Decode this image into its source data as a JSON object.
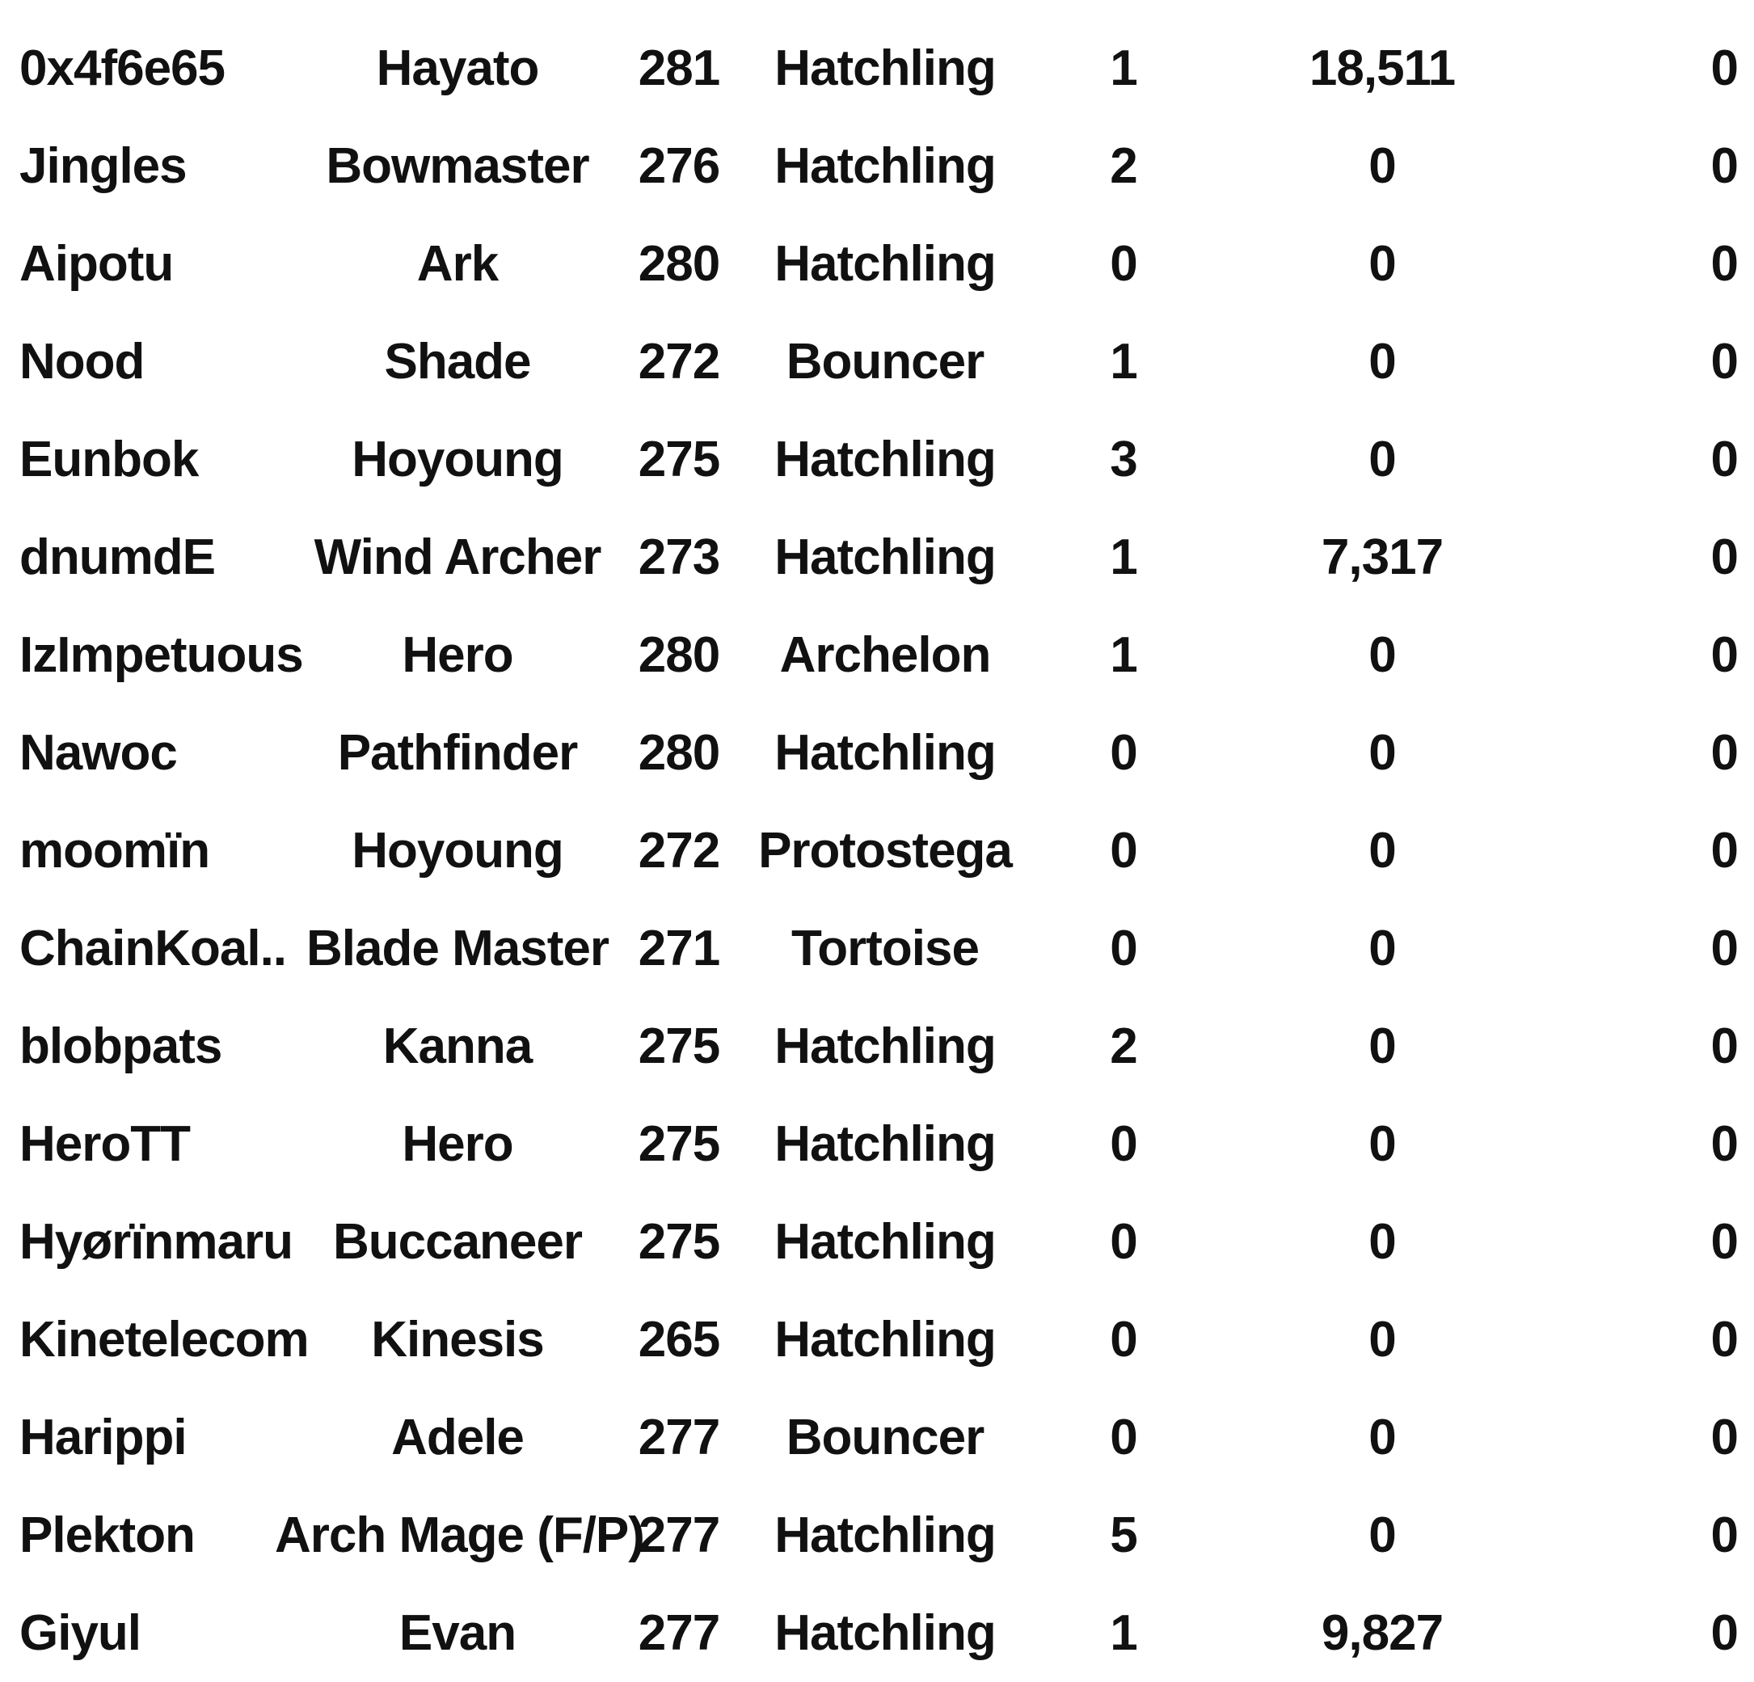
{
  "rows": [
    {
      "name": "0x4f6e65",
      "job": "Hayato",
      "level": "281",
      "legion": "Hatchling",
      "rank": "1",
      "points": "18,511",
      "extra": "0"
    },
    {
      "name": "Jingles",
      "job": "Bowmaster",
      "level": "276",
      "legion": "Hatchling",
      "rank": "2",
      "points": "0",
      "extra": "0"
    },
    {
      "name": "Aipotu",
      "job": "Ark",
      "level": "280",
      "legion": "Hatchling",
      "rank": "0",
      "points": "0",
      "extra": "0"
    },
    {
      "name": "Nood",
      "job": "Shade",
      "level": "272",
      "legion": "Bouncer",
      "rank": "1",
      "points": "0",
      "extra": "0"
    },
    {
      "name": "Eunbok",
      "job": "Hoyoung",
      "level": "275",
      "legion": "Hatchling",
      "rank": "3",
      "points": "0",
      "extra": "0"
    },
    {
      "name": "dnumdE",
      "job": "Wind Archer",
      "level": "273",
      "legion": "Hatchling",
      "rank": "1",
      "points": "7,317",
      "extra": "0"
    },
    {
      "name": "IzImpetuous",
      "job": "Hero",
      "level": "280",
      "legion": "Archelon",
      "rank": "1",
      "points": "0",
      "extra": "0"
    },
    {
      "name": "Nawoc",
      "job": "Pathfinder",
      "level": "280",
      "legion": "Hatchling",
      "rank": "0",
      "points": "0",
      "extra": "0"
    },
    {
      "name": "moomïn",
      "job": "Hoyoung",
      "level": "272",
      "legion": "Protostega",
      "rank": "0",
      "points": "0",
      "extra": "0"
    },
    {
      "name": "ChainKoal..",
      "job": "Blade Master",
      "level": "271",
      "legion": "Tortoise",
      "rank": "0",
      "points": "0",
      "extra": "0"
    },
    {
      "name": "blobpats",
      "job": "Kanna",
      "level": "275",
      "legion": "Hatchling",
      "rank": "2",
      "points": "0",
      "extra": "0"
    },
    {
      "name": "HeroTT",
      "job": "Hero",
      "level": "275",
      "legion": "Hatchling",
      "rank": "0",
      "points": "0",
      "extra": "0"
    },
    {
      "name": "Hyørïnmaru",
      "job": "Buccaneer",
      "level": "275",
      "legion": "Hatchling",
      "rank": "0",
      "points": "0",
      "extra": "0"
    },
    {
      "name": "Kinetelecom",
      "job": "Kinesis",
      "level": "265",
      "legion": "Hatchling",
      "rank": "0",
      "points": "0",
      "extra": "0"
    },
    {
      "name": "Harippi",
      "job": "Adele",
      "level": "277",
      "legion": "Bouncer",
      "rank": "0",
      "points": "0",
      "extra": "0"
    },
    {
      "name": "Plekton",
      "job": "Arch Mage (F/P)",
      "level": "277",
      "legion": "Hatchling",
      "rank": "5",
      "points": "0",
      "extra": "0"
    },
    {
      "name": "Giyul",
      "job": "Evan",
      "level": "277",
      "legion": "Hatchling",
      "rank": "1",
      "points": "9,827",
      "extra": "0"
    }
  ]
}
